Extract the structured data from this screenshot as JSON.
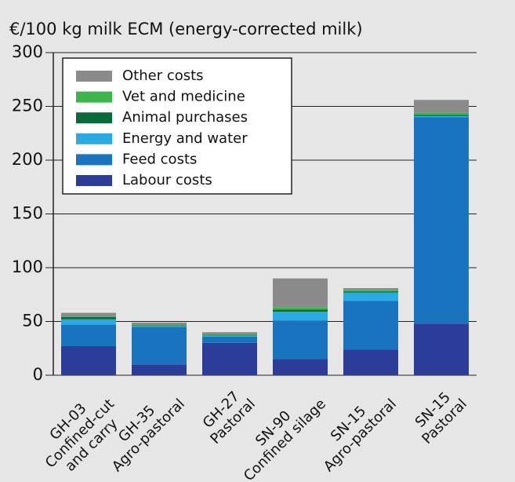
{
  "chart_data": {
    "type": "stacked_bar",
    "title": "€/100 kg milk ECM (energy-corrected milk)",
    "categories": [
      [
        "GH-03",
        "Confined-cut",
        "and carry"
      ],
      [
        "GH-35",
        "Agro-pastoral"
      ],
      [
        "GH-27",
        "Pastoral"
      ],
      [
        "SN-90",
        "Confined silage"
      ],
      [
        "SN-15",
        "Agro-pastoral"
      ],
      [
        "SN-15",
        "Pastoral"
      ]
    ],
    "series": [
      {
        "name": "Labour costs",
        "color": "#2b3d98",
        "values": [
          27,
          10,
          30,
          15,
          24,
          48
        ]
      },
      {
        "name": "Feed costs",
        "color": "#1a73bf",
        "values": [
          20,
          35,
          6,
          36,
          45,
          192
        ]
      },
      {
        "name": "Energy and water",
        "color": "#2aaae2",
        "values": [
          5,
          1,
          1,
          8,
          8,
          1
        ]
      },
      {
        "name": "Animal purchases",
        "color": "#0a6b3a",
        "values": [
          2,
          0.5,
          0.5,
          2,
          1,
          1
        ]
      },
      {
        "name": "Vet and medicine",
        "color": "#3cb54a",
        "values": [
          1,
          0.5,
          0.5,
          2,
          1,
          2
        ]
      },
      {
        "name": "Other costs",
        "color": "#8a8a8a",
        "values": [
          3,
          2,
          2,
          27,
          2,
          12
        ]
      }
    ],
    "ylim": [
      0,
      300
    ],
    "yticks": [
      0,
      50,
      100,
      150,
      200,
      250,
      300
    ],
    "grid": true,
    "legend": "upper left"
  }
}
